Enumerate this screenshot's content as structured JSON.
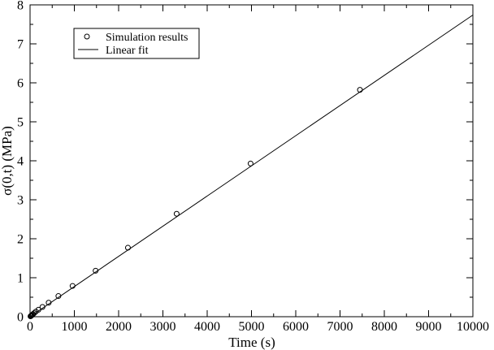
{
  "chart_data": {
    "type": "scatter",
    "xlabel": "Time (s)",
    "ylabel": "σ(0,t) (MPa)",
    "xlim": [
      0,
      10000
    ],
    "ylim": [
      0,
      8
    ],
    "x_major_ticks": [
      0,
      1000,
      2000,
      3000,
      4000,
      5000,
      6000,
      7000,
      8000,
      9000,
      10000
    ],
    "y_major_ticks": [
      0,
      1,
      2,
      3,
      4,
      5,
      6,
      7,
      8
    ],
    "x_minor_step": 500,
    "y_minor_step": 0.5,
    "grid": false,
    "legend_position": "top-left",
    "series": [
      {
        "name": "Simulation results",
        "kind": "markers",
        "marker": "open-circle",
        "x": [
          10,
          20,
          30,
          45,
          65,
          90,
          130,
          190,
          280,
          420,
          640,
          960,
          1480,
          2210,
          3310,
          4980,
          7450
        ],
        "y": [
          0.01,
          0.02,
          0.03,
          0.045,
          0.065,
          0.09,
          0.13,
          0.18,
          0.25,
          0.36,
          0.53,
          0.79,
          1.18,
          1.77,
          2.64,
          3.93,
          5.82
        ]
      },
      {
        "name": "Linear fit",
        "kind": "line",
        "x": [
          0,
          10000
        ],
        "y": [
          0.0,
          7.74
        ]
      }
    ]
  }
}
